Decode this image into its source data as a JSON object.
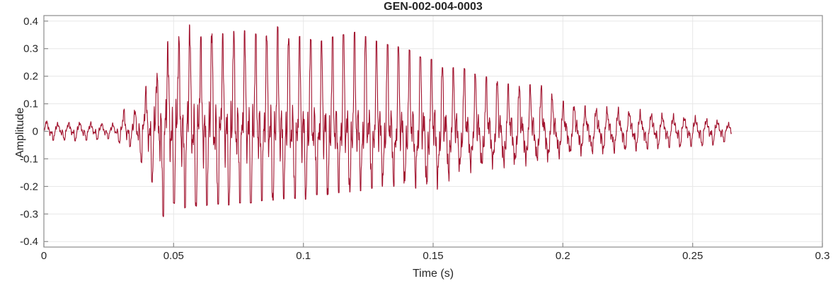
{
  "chart_data": {
    "type": "line",
    "title": "GEN-002-004-0003",
    "xlabel": "Time (s)",
    "ylabel": "Amplitude",
    "xlim": [
      0,
      0.3
    ],
    "ylim": [
      -0.42,
      0.42
    ],
    "x_ticks": [
      "0",
      "0.05",
      "0.1",
      "0.15",
      "0.2",
      "0.25",
      "0.3"
    ],
    "x_tick_values": [
      0,
      0.05,
      0.1,
      0.15,
      0.2,
      0.25,
      0.3
    ],
    "y_ticks": [
      "-0.4",
      "-0.3",
      "-0.2",
      "-0.1",
      "0",
      "0.1",
      "0.2",
      "0.3",
      "0.4"
    ],
    "y_tick_values": [
      -0.4,
      -0.3,
      -0.2,
      -0.1,
      0,
      0.1,
      0.2,
      0.3,
      0.4
    ],
    "grid": true,
    "legend": "none",
    "line_color": "#A2142F",
    "grid_color": "#E7E7E7",
    "axis_color": "#8C8C8C",
    "text_color": "#262626",
    "signal": {
      "description": "speech-like audio waveform burst",
      "duration": 0.265,
      "fundamental_hz": 236,
      "peak_amplitude": 0.41,
      "peak_time": 0.057,
      "min_amplitude": -0.31,
      "min_time": 0.046,
      "envelope_t": [
        0,
        0.005,
        0.012,
        0.02,
        0.028,
        0.031,
        0.034,
        0.038,
        0.042,
        0.046,
        0.05,
        0.054,
        0.057,
        0.06,
        0.065,
        0.07,
        0.075,
        0.08,
        0.085,
        0.09,
        0.095,
        0.1,
        0.105,
        0.11,
        0.115,
        0.12,
        0.125,
        0.13,
        0.135,
        0.14,
        0.145,
        0.15,
        0.155,
        0.16,
        0.165,
        0.17,
        0.175,
        0.18,
        0.185,
        0.19,
        0.195,
        0.2,
        0.205,
        0.21,
        0.22,
        0.23,
        0.24,
        0.25,
        0.258,
        0.265
      ],
      "envelope_upper": [
        0.05,
        0.035,
        0.04,
        0.035,
        0.03,
        0.09,
        0.06,
        0.16,
        0.17,
        0.3,
        0.36,
        0.33,
        0.41,
        0.34,
        0.37,
        0.35,
        0.37,
        0.36,
        0.34,
        0.38,
        0.33,
        0.35,
        0.32,
        0.34,
        0.35,
        0.36,
        0.34,
        0.32,
        0.31,
        0.3,
        0.27,
        0.26,
        0.22,
        0.24,
        0.21,
        0.2,
        0.18,
        0.17,
        0.16,
        0.18,
        0.14,
        0.11,
        0.1,
        0.09,
        0.09,
        0.08,
        0.07,
        0.06,
        0.05,
        0.03
      ],
      "envelope_lower": [
        -0.04,
        -0.03,
        -0.035,
        -0.03,
        -0.025,
        -0.07,
        -0.05,
        -0.12,
        -0.19,
        -0.31,
        -0.26,
        -0.28,
        -0.26,
        -0.28,
        -0.26,
        -0.27,
        -0.26,
        -0.26,
        -0.25,
        -0.25,
        -0.24,
        -0.25,
        -0.23,
        -0.23,
        -0.22,
        -0.22,
        -0.21,
        -0.2,
        -0.2,
        -0.2,
        -0.21,
        -0.22,
        -0.19,
        -0.16,
        -0.15,
        -0.15,
        -0.14,
        -0.15,
        -0.13,
        -0.13,
        -0.12,
        -0.1,
        -0.09,
        -0.09,
        -0.08,
        -0.07,
        -0.06,
        -0.055,
        -0.05,
        -0.03
      ]
    }
  }
}
